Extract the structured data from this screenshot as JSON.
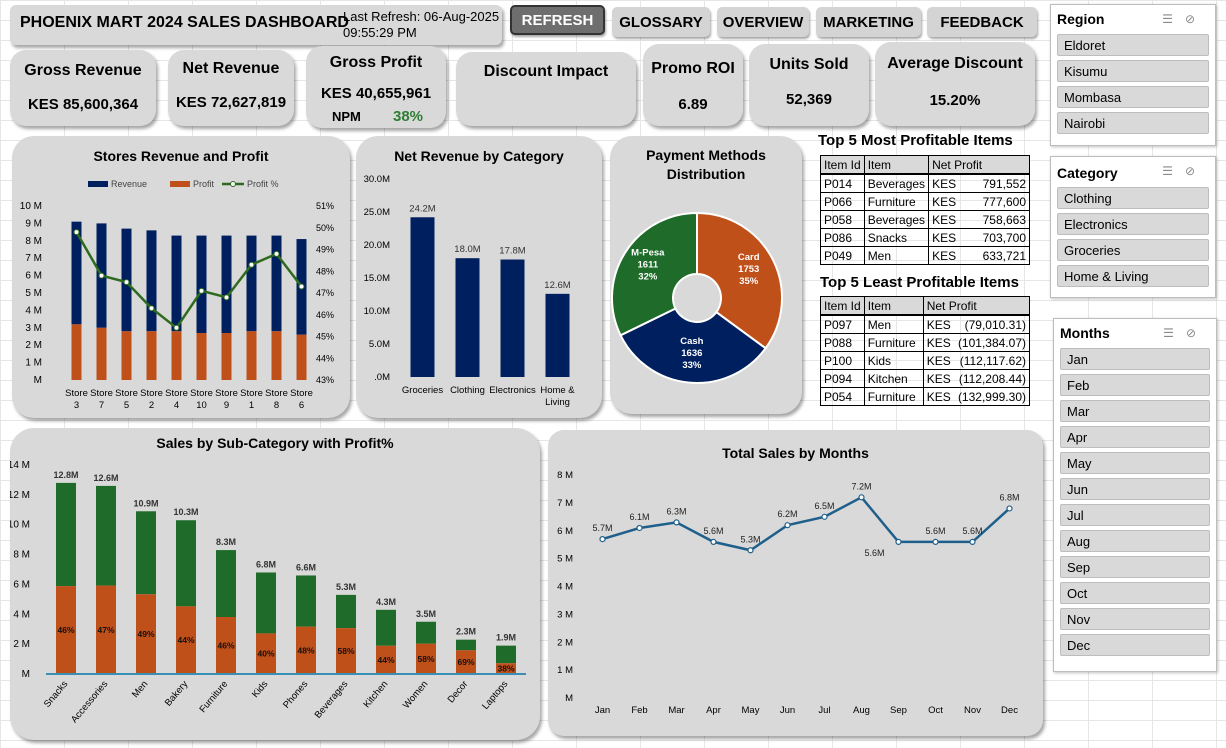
{
  "header": {
    "title": "PHOENIX MART 2024 SALES DASHBOARD",
    "refresh_line1": "Last Refresh: 06-Aug-2025",
    "refresh_line2": "09:55:29 PM"
  },
  "nav": {
    "refresh": "REFRESH",
    "glossary": "GLOSSARY",
    "overview": "OVERVIEW",
    "marketing": "MARKETING",
    "feedback": "FEEDBACK"
  },
  "kpis": {
    "gross_revenue": {
      "title": "Gross Revenue",
      "value": "KES 85,600,364"
    },
    "net_revenue": {
      "title": "Net Revenue",
      "value": "KES 72,627,819"
    },
    "gross_profit": {
      "title": "Gross Profit",
      "value": "KES 40,655,961",
      "npm_label": "NPM",
      "npm_value": "38%"
    },
    "discount_impact": {
      "title": "Discount Impact"
    },
    "promo_roi": {
      "title": "Promo ROI",
      "value": "6.89"
    },
    "units_sold": {
      "title": "Units Sold",
      "value": "52,369"
    },
    "avg_discount": {
      "title": "Average Discount",
      "value": "15.20%"
    }
  },
  "colors": {
    "navy": "#001f5f",
    "orange": "#c0501a",
    "green": "#2e6b1f",
    "dark_green": "#1e6b2a",
    "line_blue": "#1f5f8b",
    "npm_green": "#2e7d32"
  },
  "chart_data": [
    {
      "id": "stores",
      "type": "bar",
      "title": "Stores Revenue and Profit",
      "legend": [
        "Revenue",
        "Profit",
        "Profit %"
      ],
      "categories": [
        "Store 3",
        "Store 7",
        "Store 5",
        "Store 2",
        "Store 4",
        "Store 10",
        "Store 9",
        "Store 1",
        "Store 8",
        "Store 6"
      ],
      "series": [
        {
          "name": "Revenue",
          "values": [
            9.1,
            9.0,
            8.7,
            8.6,
            8.3,
            8.3,
            8.3,
            8.3,
            8.3,
            8.1
          ]
        },
        {
          "name": "Profit",
          "values": [
            3.2,
            3.0,
            2.8,
            2.8,
            2.8,
            2.7,
            2.7,
            2.8,
            2.8,
            2.6
          ]
        },
        {
          "name": "Profit %",
          "values": [
            49.8,
            47.8,
            47.5,
            46.3,
            45.4,
            47.1,
            46.8,
            48.3,
            48.8,
            47.3
          ]
        }
      ],
      "y_ticks": [
        "M",
        "1 M",
        "2 M",
        "3 M",
        "4 M",
        "5 M",
        "6 M",
        "7 M",
        "8 M",
        "9 M",
        "10 M"
      ],
      "y2_ticks": [
        "43%",
        "44%",
        "45%",
        "46%",
        "47%",
        "48%",
        "49%",
        "50%",
        "51%"
      ],
      "ylim": [
        0,
        10
      ],
      "y2lim": [
        43,
        51
      ]
    },
    {
      "id": "category",
      "type": "bar",
      "title": "Net Revenue by Category",
      "categories": [
        "Groceries",
        "Clothing",
        "Electronics",
        "Home & Living"
      ],
      "values": [
        24.2,
        18.0,
        17.8,
        12.6
      ],
      "labels": [
        "24.2M",
        "18.0M",
        "17.8M",
        "12.6M"
      ],
      "y_ticks": [
        ".0M",
        "5.0M",
        "10.0M",
        "15.0M",
        "20.0M",
        "25.0M",
        "30.0M"
      ],
      "ylim": [
        0,
        30
      ]
    },
    {
      "id": "payment",
      "type": "pie",
      "title": "Payment Methods Distribution",
      "slices": [
        {
          "name": "Card",
          "count": "1753",
          "pct": "35%",
          "value": 1753
        },
        {
          "name": "Cash",
          "count": "1636",
          "pct": "33%",
          "value": 1636
        },
        {
          "name": "M-Pesa",
          "count": "1611",
          "pct": "32%",
          "value": 1611
        }
      ]
    },
    {
      "id": "subcategory",
      "type": "bar",
      "title": "Sales by Sub-Category with Profit%",
      "categories": [
        "Snacks",
        "Accessories",
        "Men",
        "Bakery",
        "Furniture",
        "Kids",
        "Phones",
        "Beverages",
        "Kitchen",
        "Women",
        "Decor",
        "Laptops"
      ],
      "totals": [
        12.8,
        12.6,
        10.9,
        10.3,
        8.3,
        6.8,
        6.6,
        5.3,
        4.3,
        3.5,
        2.3,
        1.9
      ],
      "total_labels": [
        "12.8M",
        "12.6M",
        "10.9M",
        "10.3M",
        "8.3M",
        "6.8M",
        "6.6M",
        "5.3M",
        "4.3M",
        "3.5M",
        "2.3M",
        "1.9M"
      ],
      "profit_pct": [
        46,
        47,
        49,
        44,
        46,
        40,
        48,
        58,
        44,
        58,
        69,
        38
      ],
      "profit_labels": [
        "46%",
        "47%",
        "49%",
        "44%",
        "46%",
        "40%",
        "48%",
        "58%",
        "44%",
        "58%",
        "69%",
        "38%"
      ],
      "y_ticks": [
        "M",
        "2 M",
        "4 M",
        "6 M",
        "8 M",
        "10 M",
        "12 M",
        "14 M"
      ],
      "ylim": [
        0,
        14
      ]
    },
    {
      "id": "months",
      "type": "line",
      "title": "Total Sales by Months",
      "categories": [
        "Jan",
        "Feb",
        "Mar",
        "Apr",
        "May",
        "Jun",
        "Jul",
        "Aug",
        "Sep",
        "Oct",
        "Nov",
        "Dec"
      ],
      "values": [
        5.7,
        6.1,
        6.3,
        5.6,
        5.3,
        6.2,
        6.5,
        7.2,
        5.6,
        5.6,
        5.6,
        6.8
      ],
      "labels": [
        "5.7M",
        "6.1M",
        "6.3M",
        "5.6M",
        "5.3M",
        "6.2M",
        "6.5M",
        "7.2M",
        "5.6M",
        "5.6M",
        "5.6M",
        "6.8M"
      ],
      "y_ticks": [
        "M",
        "1 M",
        "2 M",
        "3 M",
        "4 M",
        "5 M",
        "6 M",
        "7 M",
        "8 M"
      ],
      "ylim": [
        0,
        8
      ]
    }
  ],
  "top5": {
    "title": "Top 5 Most Profitable Items",
    "headers": [
      "Item Id",
      "Item",
      "Net Profit"
    ],
    "rows": [
      [
        "P014",
        "Beverages",
        "KES",
        "791,552"
      ],
      [
        "P066",
        "Furniture",
        "KES",
        "777,600"
      ],
      [
        "P058",
        "Beverages",
        "KES",
        "758,663"
      ],
      [
        "P086",
        "Snacks",
        "KES",
        "703,700"
      ],
      [
        "P049",
        "Men",
        "KES",
        "633,721"
      ]
    ]
  },
  "bottom5": {
    "title": "Top 5 Least Profitable Items",
    "headers": [
      "Item Id",
      "Item",
      "Net Profit"
    ],
    "rows": [
      [
        "P097",
        "Men",
        "KES",
        "(79,010.31)"
      ],
      [
        "P088",
        "Furniture",
        "KES",
        "(101,384.07)"
      ],
      [
        "P100",
        "Kids",
        "KES",
        "(112,117.62)"
      ],
      [
        "P094",
        "Kitchen",
        "KES",
        "(112,208.44)"
      ],
      [
        "P054",
        "Furniture",
        "KES",
        "(132,999.30)"
      ]
    ]
  },
  "slicers": {
    "region": {
      "title": "Region",
      "items": [
        "Eldoret",
        "Kisumu",
        "Mombasa",
        "Nairobi"
      ]
    },
    "category": {
      "title": "Category",
      "items": [
        "Clothing",
        "Electronics",
        "Groceries",
        "Home & Living"
      ]
    },
    "months": {
      "title": "Months",
      "items": [
        "Jan",
        "Feb",
        "Mar",
        "Apr",
        "May",
        "Jun",
        "Jul",
        "Aug",
        "Sep",
        "Oct",
        "Nov",
        "Dec"
      ]
    }
  }
}
